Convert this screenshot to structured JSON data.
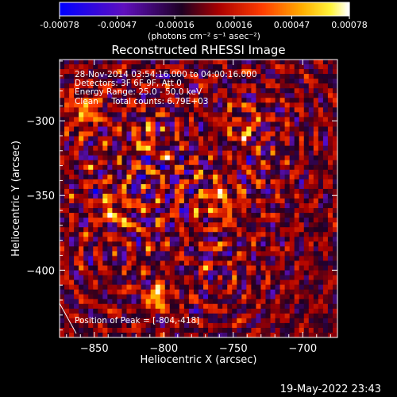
{
  "chart_data": {
    "type": "heatmap",
    "title": "Reconstructed RHESSI Image",
    "xlabel": "Heliocentric X (arcsec)",
    "ylabel": "Heliocentric Y (arcsec)",
    "xlim": [
      -875,
      -675
    ],
    "ylim": [
      -445,
      -259
    ],
    "x_ticks": [
      -850,
      -800,
      -750,
      -700
    ],
    "y_ticks": [
      -300,
      -350,
      -400
    ],
    "colorbar": {
      "min": -0.00078,
      "max": 0.00078,
      "tick_labels": [
        "-0.00078",
        "-0.00047",
        "-0.00016",
        "0.00016",
        "0.00047",
        "0.00078"
      ],
      "unit_label": "(photons cm⁻² s⁻¹ asec⁻²)"
    },
    "annotations": [
      "28-Nov-2014 03:54:16.000 to 04:00:16.000",
      "Detectors: 3F 6F 9F, Att 0",
      "Energy Range: 25.0 - 50.0 keV",
      "Clean     Total counts: 6.79E+03"
    ],
    "peak_label": "Position of Peak = [-804,-418]",
    "peak": [
      -804,
      -418
    ],
    "legend": "none",
    "grid": false
  },
  "footer": {
    "timestamp": "19-May-2022 23:43"
  }
}
